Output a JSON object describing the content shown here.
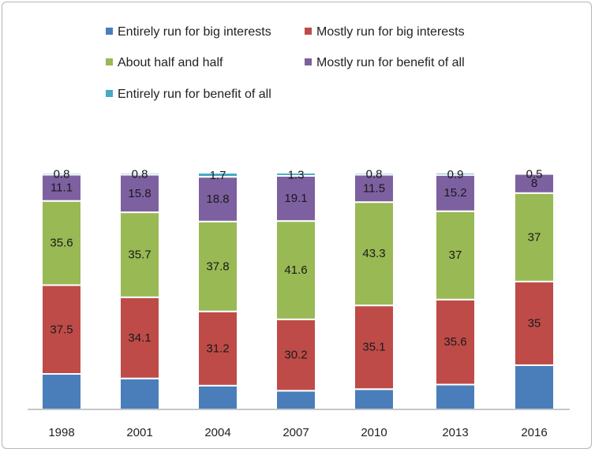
{
  "chart_data": {
    "type": "bar",
    "stacked": true,
    "title": "",
    "xlabel": "",
    "ylabel": "",
    "categories": [
      "1998",
      "2001",
      "2004",
      "2007",
      "2010",
      "2013",
      "2016"
    ],
    "series": [
      {
        "name": "Entirely run for big interests",
        "color": "#4a7ebb",
        "values": [
          15,
          13,
          10,
          7.9,
          8.5,
          10.4,
          18.5
        ],
        "labels": [
          "",
          "",
          "",
          "",
          "",
          "",
          ""
        ]
      },
      {
        "name": "Mostly run for big interests",
        "color": "#be4b48",
        "values": [
          37.5,
          34.1,
          31.2,
          30.2,
          35.1,
          35.6,
          35
        ],
        "labels": [
          "37.5",
          "34.1",
          "31.2",
          "30.2",
          "35.1",
          "35.6",
          "35"
        ]
      },
      {
        "name": "About half and half",
        "color": "#98b954",
        "values": [
          35.6,
          35.7,
          37.8,
          41.6,
          43.3,
          37,
          37
        ],
        "labels": [
          "35.6",
          "35.7",
          "37.8",
          "41.6",
          "43.3",
          "37",
          "37"
        ]
      },
      {
        "name": "Mostly run for benefit of all",
        "color": "#7d60a0",
        "values": [
          11.1,
          15.8,
          18.8,
          19.1,
          11.5,
          15.2,
          8
        ],
        "labels": [
          "11.1",
          "15.8",
          "18.8",
          "19.1",
          "11.5",
          "15.2",
          "8"
        ]
      },
      {
        "name": "Entirely run for benefit of all",
        "color": "#46aac5",
        "values": [
          0.8,
          0.8,
          1.7,
          1.3,
          0.8,
          0.9,
          0.5
        ],
        "labels": [
          "0.8",
          "0.8",
          "1.7",
          "1.3",
          "0.8",
          "0.9",
          "0.5"
        ]
      }
    ],
    "legend_position": "top",
    "grid": false
  }
}
